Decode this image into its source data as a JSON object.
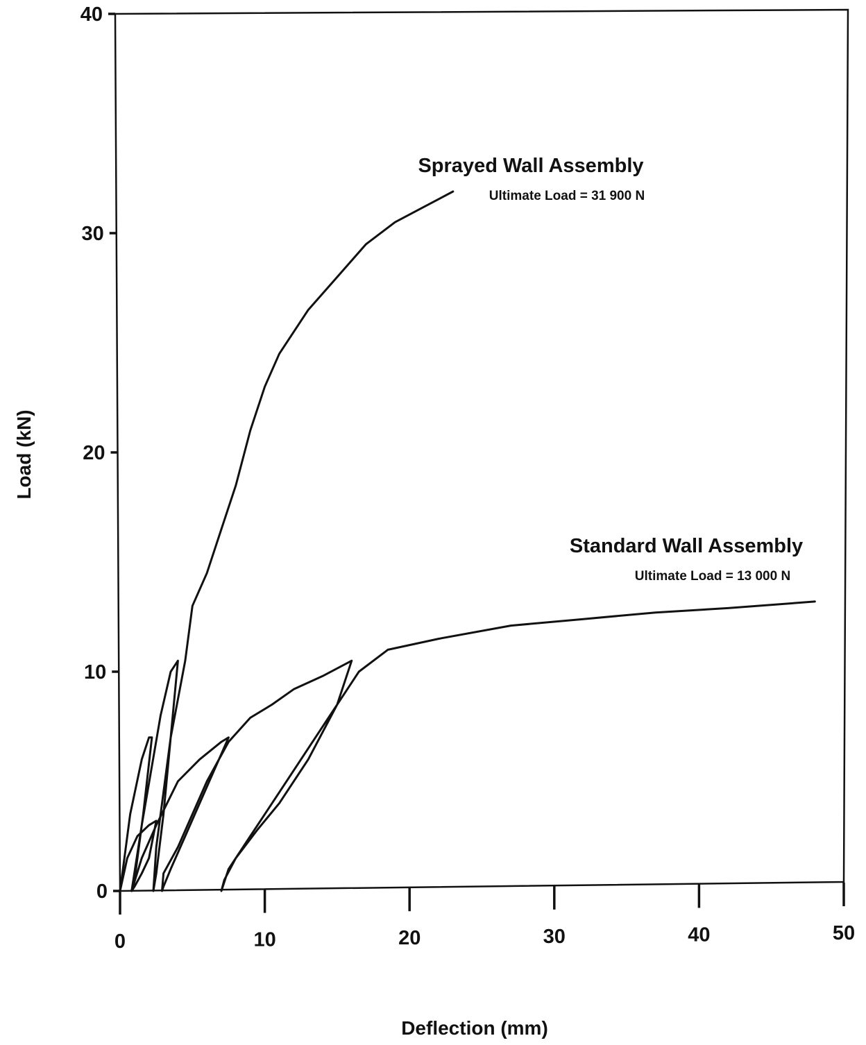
{
  "chart_data": {
    "type": "line",
    "xlabel": "Deflection (mm)",
    "ylabel": "Load (kN)",
    "xlim": [
      0,
      50
    ],
    "ylim": [
      0,
      40
    ],
    "x_ticks": [
      "0",
      "10",
      "20",
      "30",
      "40",
      "50"
    ],
    "y_ticks": [
      "0",
      "10",
      "20",
      "30",
      "40"
    ],
    "grid": false,
    "series": [
      {
        "name": "Sprayed Wall Assembly",
        "annotation": "Ultimate Load = 31 900 N",
        "points": [
          [
            0.0,
            0.0
          ],
          [
            0.2,
            1.0
          ],
          [
            0.7,
            3.5
          ],
          [
            1.5,
            6.0
          ],
          [
            2.0,
            7.0
          ],
          [
            2.2,
            7.0
          ],
          [
            1.6,
            3.5
          ],
          [
            1.0,
            0.5
          ],
          [
            0.8,
            0.0
          ],
          [
            1.5,
            3.0
          ],
          [
            2.8,
            8.0
          ],
          [
            3.5,
            10.0
          ],
          [
            4.0,
            10.5
          ],
          [
            3.5,
            7.0
          ],
          [
            3.0,
            3.5
          ],
          [
            2.5,
            0.8
          ],
          [
            2.3,
            0.0
          ],
          [
            2.5,
            2.0
          ],
          [
            3.5,
            7.0
          ],
          [
            4.5,
            10.5
          ],
          [
            5.0,
            13.0
          ],
          [
            6.0,
            14.5
          ],
          [
            7.0,
            16.5
          ],
          [
            8.0,
            18.5
          ],
          [
            9.0,
            21.0
          ],
          [
            10.0,
            23.0
          ],
          [
            11.0,
            24.5
          ],
          [
            13.0,
            26.5
          ],
          [
            15.0,
            28.0
          ],
          [
            17.0,
            29.5
          ],
          [
            19.0,
            30.5
          ],
          [
            21.0,
            31.2
          ],
          [
            23.0,
            31.9
          ]
        ]
      },
      {
        "name": "Standard Wall Assembly",
        "annotation": "Ultimate Load = 13 000 N",
        "points": [
          [
            0.0,
            0.0
          ],
          [
            0.5,
            1.5
          ],
          [
            1.2,
            2.5
          ],
          [
            2.0,
            3.0
          ],
          [
            2.5,
            3.2
          ],
          [
            2.0,
            1.5
          ],
          [
            1.5,
            0.8
          ],
          [
            1.0,
            0.2
          ],
          [
            0.8,
            0.0
          ],
          [
            1.5,
            1.5
          ],
          [
            2.5,
            3.0
          ],
          [
            4.0,
            5.0
          ],
          [
            5.5,
            6.0
          ],
          [
            7.0,
            6.8
          ],
          [
            7.5,
            7.0
          ],
          [
            6.5,
            5.5
          ],
          [
            5.5,
            4.0
          ],
          [
            4.5,
            2.5
          ],
          [
            3.5,
            1.0
          ],
          [
            3.0,
            0.2
          ],
          [
            2.9,
            0.0
          ],
          [
            3.0,
            0.8
          ],
          [
            4.0,
            2.0
          ],
          [
            5.0,
            3.5
          ],
          [
            6.0,
            5.0
          ],
          [
            7.5,
            6.8
          ],
          [
            9.0,
            7.9
          ],
          [
            10.5,
            8.5
          ],
          [
            12.0,
            9.2
          ],
          [
            14.0,
            9.8
          ],
          [
            16.0,
            10.5
          ],
          [
            15.0,
            8.5
          ],
          [
            13.0,
            6.0
          ],
          [
            11.0,
            4.0
          ],
          [
            9.5,
            2.8
          ],
          [
            8.0,
            1.5
          ],
          [
            7.2,
            0.5
          ],
          [
            7.0,
            0.0
          ],
          [
            7.5,
            1.0
          ],
          [
            9.0,
            2.5
          ],
          [
            11.0,
            4.5
          ],
          [
            13.0,
            6.5
          ],
          [
            15.0,
            8.5
          ],
          [
            16.5,
            10.0
          ],
          [
            18.5,
            11.0
          ],
          [
            22.0,
            11.5
          ],
          [
            27.0,
            12.1
          ],
          [
            32.0,
            12.4
          ],
          [
            37.0,
            12.7
          ],
          [
            42.0,
            12.9
          ],
          [
            48.0,
            13.2
          ]
        ]
      }
    ]
  }
}
